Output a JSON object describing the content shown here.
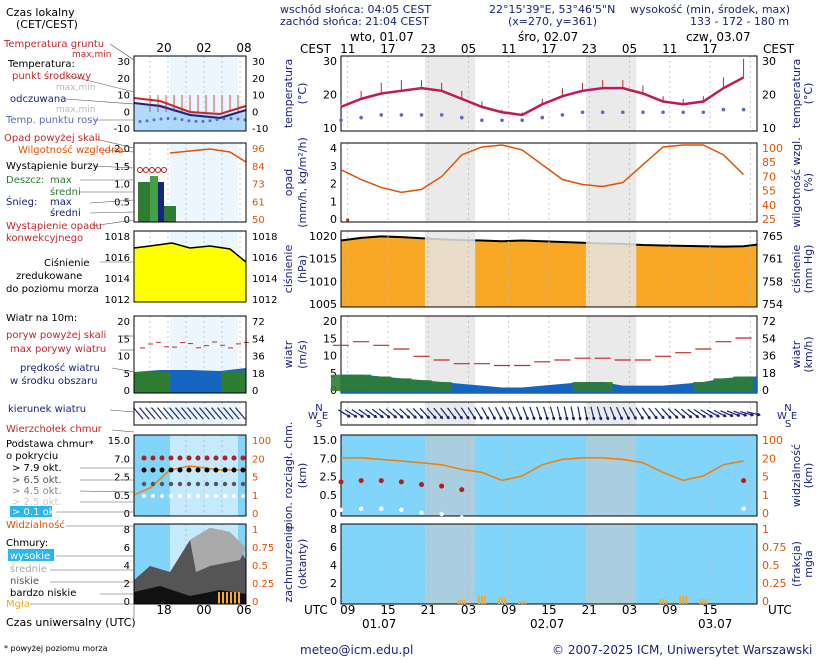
{
  "header": {
    "tz_label": [
      "Czas lokalny",
      "(CET/CEST)"
    ],
    "sunrise": "wschód słońca: 04:05 CEST",
    "sunset": "zachód słońca: 21:04 CEST",
    "coords": "22°15'39\"E, 53°46'5\"N",
    "grid": "(x=270, y=361)",
    "height_label": "wysokość (min, środek, max)",
    "height_values": "133 - 172 - 180 m",
    "cest_left": "CEST",
    "cest_right": "CEST",
    "day_labels": [
      "wto, 01.07",
      "śro, 02.07",
      "czw, 03.07"
    ]
  },
  "top_local_hours": [
    "11",
    "17",
    "23",
    "05",
    "11",
    "17",
    "23",
    "05",
    "11",
    "17"
  ],
  "bottom_utc_hours": [
    "09",
    "15",
    "21",
    "03",
    "09",
    "15",
    "21",
    "03",
    "09",
    "15"
  ],
  "bottom_dates": [
    "01.07",
    "02.07",
    "03.07"
  ],
  "utc_left": "UTC",
  "utc_right": "UTC",
  "legend_panel": {
    "mini_top_hours": [
      "20",
      "02",
      "08"
    ],
    "mini_bottom_hours": [
      "18",
      "00",
      "06"
    ],
    "bottom_label": "Czas uniwersalny (UTC)",
    "footnote": "* powyżej poziomu morza",
    "temp": {
      "ground_temp": "Temperatura gruntu",
      "max_min": "max,min",
      "temp_title": "Temperatura:",
      "mid_point": "punkt środkowy",
      "max_min_2": "max,min",
      "perceived": "odczuwana",
      "max_min_3": "max,min",
      "dew_point": "Temp. punktu rosy",
      "ticks_left": [
        "30",
        "20",
        "10",
        "0",
        "-10"
      ],
      "ticks_right": [
        "30",
        "20",
        "10",
        "0",
        "-10"
      ]
    },
    "precip": {
      "rain_over": "Opad powyżej skali",
      "humidity": "Wilgotność względna",
      "storm": "Wystąpienie burzy",
      "rain": "Deszcz:",
      "rain_max": "max",
      "rain_mid": "średni",
      "snow": "Śnieg:",
      "snow_max": "max",
      "snow_mid": "średni",
      "occurrence_1": "Wystąpienie opadu",
      "occurrence_2": "konwekcyjnego",
      "ticks_left": [
        "2.0",
        "1.5",
        "1.0",
        "0.5",
        "0"
      ],
      "ticks_right": [
        "96",
        "84",
        "73",
        "61",
        "50"
      ]
    },
    "pressure": {
      "label_1": "Ciśnienie",
      "label_2": "zredukowane",
      "label_3": "do poziomu morza",
      "ticks_left": [
        "1018",
        "1016",
        "1014",
        "1012"
      ],
      "ticks_right": [
        "1018",
        "1016",
        "1014",
        "1012"
      ]
    },
    "wind": {
      "title": "Wiatr na 10m:",
      "gust_over": "poryw powyżej skali",
      "max_gust": "max porywy wiatru",
      "speed_1": "prędkość wiatru",
      "speed_2": "w środku obszaru",
      "ticks_left": [
        "20",
        "15",
        "10",
        "5",
        "0"
      ],
      "ticks_right": [
        "72",
        "54",
        "36",
        "18",
        "0"
      ]
    },
    "direction": {
      "label": "kierunek wiatru"
    },
    "clouds": {
      "cb_top": "Wierzchołek chmur",
      "base_1": "Podstawa chmur*",
      "base_2": "o pokryciu",
      "c79": "> 7.9 okt.",
      "c65": "> 6.5 okt.",
      "c45": "> 4.5 okt.",
      "c25": "> 2.5 okt.",
      "c01": "> 0.1 okt.",
      "visibility": "Widzialność",
      "ticks_left": [
        "15.0",
        "7.0",
        "2.5",
        "0.5",
        "0"
      ],
      "ticks_right": [
        "100",
        "20",
        "5",
        "1",
        "0"
      ]
    },
    "cover": {
      "title": "Chmury:",
      "high": "wysokie",
      "mid": "średnie",
      "low": "niskie",
      "very_low": "bardzo niskie",
      "fog": "Mgła",
      "ticks_left": [
        "8",
        "6",
        "4",
        "2",
        "0"
      ],
      "ticks_right": [
        "1",
        "0.75",
        "0.5",
        "0.25",
        "0"
      ]
    }
  },
  "footer": {
    "email": "meteo@icm.edu.pl",
    "copyright": "© 2007-2025 ICM, Uniwersytet Warszawski"
  },
  "panels": {
    "temp": {
      "ylabel_left": "temperatura",
      "ylabel_left2": "(°C)",
      "ylabel_right": "temperatura",
      "ylabel_right2": "(°C)",
      "ticks_left": [
        "30",
        "20",
        "10"
      ],
      "ticks_right": [
        "30",
        "20",
        "10"
      ]
    },
    "precip": {
      "ylabel_left": "opad",
      "ylabel_left2": "(mm/h, kg/m²/h)",
      "ylabel_right": "wilgotność wzgl.",
      "ylabel_right2": "(%)",
      "ticks_left": [
        "4",
        "3",
        "2",
        "1",
        "0"
      ],
      "ticks_right": [
        "100",
        "85",
        "70",
        "55",
        "40",
        "25"
      ]
    },
    "pressure": {
      "ylabel_left": "ciśnienie",
      "ylabel_left2": "(hPa)",
      "ylabel_right": "ciśnienie",
      "ylabel_right2": "(mm Hg)",
      "ticks_left": [
        "1020",
        "1015",
        "1010",
        "1005"
      ],
      "ticks_right": [
        "765",
        "761",
        "758",
        "754"
      ]
    },
    "wind": {
      "ylabel_left": "wiatr",
      "ylabel_left2": "(m/s)",
      "ylabel_right": "wiatr",
      "ylabel_right2": "(km/h)",
      "ticks_left": [
        "20",
        "15",
        "10",
        "5",
        "0"
      ],
      "ticks_right": [
        "72",
        "54",
        "36",
        "18",
        "0"
      ]
    },
    "dir": {
      "compass": [
        "N",
        "W",
        "E",
        "S"
      ]
    },
    "clouds": {
      "ylabel_left": "pion. rozciągł. chm.",
      "ylabel_left2": "(km)",
      "ylabel_right": "widzialność",
      "ylabel_right2": "(km)",
      "ticks_left": [
        "15.0",
        "7.0",
        "2.5",
        "0.5",
        "0"
      ],
      "ticks_right": [
        "100",
        "20",
        "5",
        "1",
        "0"
      ]
    },
    "cover": {
      "ylabel_left": "zachmurzenie",
      "ylabel_left2": "(oktanty)",
      "ylabel_right": "(frakcja)",
      "ylabel_right2": "mgła",
      "ticks_left": [
        "8",
        "6",
        "4",
        "2",
        "0"
      ],
      "ticks_right": [
        "1",
        "0.75",
        "0.5",
        "0.25",
        "0"
      ]
    }
  },
  "chart_data": {
    "type": "line",
    "x_unit": "hours since 01.07 08:00 UTC",
    "hours": [
      0,
      3,
      6,
      9,
      12,
      15,
      18,
      21,
      24,
      27,
      30,
      33,
      36,
      39,
      42,
      45,
      48,
      51,
      54,
      57,
      60
    ],
    "temperature_c": [
      17,
      20,
      22,
      23,
      24,
      23,
      20,
      17,
      15,
      14,
      18,
      21,
      23,
      24,
      24,
      22,
      19,
      18,
      19,
      24,
      28
    ],
    "temperature_max_c": [
      18,
      23,
      26,
      27,
      27,
      26,
      23,
      19,
      16,
      15,
      20,
      24,
      26,
      27,
      27,
      25,
      21,
      20,
      21,
      28,
      35
    ],
    "dew_point_c": [
      12,
      13,
      14,
      14,
      14,
      14,
      13,
      12,
      12,
      12,
      13,
      14,
      15,
      15,
      15,
      15,
      15,
      15,
      15,
      16,
      16
    ],
    "humidity_pct": [
      75,
      65,
      57,
      52,
      55,
      68,
      90,
      98,
      100,
      95,
      80,
      65,
      60,
      58,
      62,
      80,
      98,
      100,
      100,
      90,
      70
    ],
    "pressure_hpa": [
      1019.5,
      1020.2,
      1020.6,
      1020.4,
      1020.1,
      1019.8,
      1019.6,
      1019.5,
      1019.3,
      1019.5,
      1019.3,
      1019.1,
      1018.9,
      1018.7,
      1018.6,
      1018.3,
      1018.2,
      1018.1,
      1018.0,
      1017.9,
      1018.0
    ],
    "wind_speed_ms": [
      5,
      5,
      4.5,
      4,
      3.5,
      3,
      2.5,
      2,
      1.5,
      1.5,
      2,
      2.5,
      3,
      3,
      2,
      2,
      2,
      2.5,
      3,
      4,
      4.5
    ],
    "wind_gust_ms": [
      13,
      14,
      13,
      12,
      10,
      9,
      8,
      8,
      7.5,
      7.5,
      8.5,
      9,
      9.5,
      9.5,
      9,
      9,
      10,
      11,
      12,
      14,
      15
    ],
    "cloud_base_km": [
      6,
      6.5,
      6.5,
      6,
      5,
      4.5,
      3.5,
      null,
      null,
      null,
      null,
      null,
      null,
      null,
      null,
      null,
      null,
      null,
      null,
      null,
      6.5
    ],
    "visibility_km": [
      12,
      12,
      11,
      10,
      9,
      8,
      6,
      5,
      3,
      4,
      8,
      11,
      12,
      12,
      11,
      9,
      5,
      3,
      4,
      8,
      10
    ],
    "fog_fraction": [
      0,
      0,
      0,
      0,
      0,
      0,
      0.05,
      0.1,
      0.08,
      0.04,
      0,
      0,
      0,
      0,
      0,
      0,
      0.06,
      0.1,
      0.06,
      0,
      0
    ]
  }
}
